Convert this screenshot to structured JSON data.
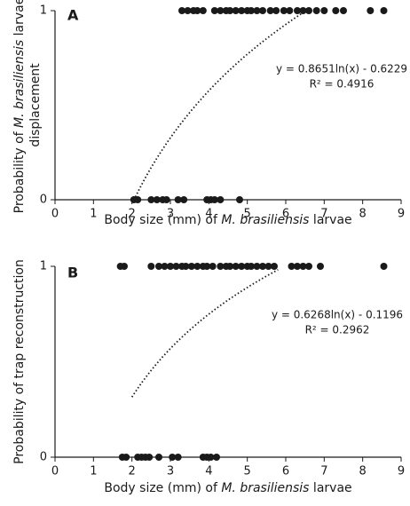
{
  "chart_data": [
    {
      "type": "scatter",
      "panel_label": "A",
      "xlabel": [
        "Body size (mm) of ",
        "M. brasiliensis",
        " larvae"
      ],
      "ylabel": [
        [
          "Probability of ",
          "M. brasiliensis",
          " larvae"
        ],
        [
          "displacement"
        ]
      ],
      "equation": "y = 0.8651ln(x) - 0.6229",
      "r_squared": "R² = 0.4916",
      "trendline": {
        "type": "log",
        "a": 0.8651,
        "b": -0.6229,
        "xrange": [
          2.05,
          6.55
        ]
      },
      "color": "#1a1a1a",
      "x": [
        3.3,
        3.45,
        3.6,
        3.7,
        3.85,
        4.15,
        4.3,
        4.45,
        4.55,
        4.7,
        4.85,
        5.0,
        5.1,
        5.25,
        5.4,
        5.6,
        5.75,
        5.95,
        6.1,
        6.3,
        6.45,
        6.6,
        6.8,
        7.0,
        7.3,
        7.5,
        8.2,
        8.55,
        2.05,
        2.15,
        2.5,
        2.65,
        2.8,
        2.9,
        3.2,
        3.35,
        3.95,
        4.05,
        4.15,
        4.3,
        4.8
      ],
      "values": [
        1,
        1,
        1,
        1,
        1,
        1,
        1,
        1,
        1,
        1,
        1,
        1,
        1,
        1,
        1,
        1,
        1,
        1,
        1,
        1,
        1,
        1,
        1,
        1,
        1,
        1,
        1,
        1,
        0,
        0,
        0,
        0,
        0,
        0,
        0,
        0,
        0,
        0,
        0,
        0,
        0
      ],
      "xlim": [
        0,
        9
      ],
      "xticks": [
        0,
        1,
        2,
        3,
        4,
        5,
        6,
        7,
        8,
        9
      ],
      "ylim": [
        0,
        1
      ],
      "yticks": [
        0,
        1
      ]
    },
    {
      "type": "scatter",
      "panel_label": "B",
      "xlabel": [
        "Body size (mm) of ",
        "M. brasiliensis",
        " larvae"
      ],
      "ylabel": [
        [
          "Probability of trap reconstruction"
        ]
      ],
      "equation": "y = 0.6268ln(x) - 0.1196",
      "r_squared": "R² = 0.2962",
      "trendline": {
        "type": "log",
        "a": 0.6268,
        "b": -0.1196,
        "xrange": [
          2.0,
          5.8
        ]
      },
      "color": "#1a1a1a",
      "x": [
        1.7,
        1.8,
        2.5,
        2.7,
        2.85,
        3.0,
        3.15,
        3.3,
        3.4,
        3.55,
        3.7,
        3.85,
        3.95,
        4.1,
        4.3,
        4.45,
        4.55,
        4.7,
        4.85,
        5.0,
        5.1,
        5.25,
        5.4,
        5.55,
        5.7,
        6.15,
        6.3,
        6.45,
        6.6,
        6.9,
        8.55,
        1.75,
        1.85,
        2.15,
        2.25,
        2.35,
        2.45,
        2.7,
        3.05,
        3.2,
        3.85,
        3.95,
        4.05,
        4.2
      ],
      "values": [
        1,
        1,
        1,
        1,
        1,
        1,
        1,
        1,
        1,
        1,
        1,
        1,
        1,
        1,
        1,
        1,
        1,
        1,
        1,
        1,
        1,
        1,
        1,
        1,
        1,
        1,
        1,
        1,
        1,
        1,
        1,
        0,
        0,
        0,
        0,
        0,
        0,
        0,
        0,
        0,
        0,
        0,
        0,
        0
      ],
      "xlim": [
        0,
        9
      ],
      "xticks": [
        0,
        1,
        2,
        3,
        4,
        5,
        6,
        7,
        8,
        9
      ],
      "ylim": [
        0,
        1
      ],
      "yticks": [
        0,
        1
      ]
    }
  ]
}
